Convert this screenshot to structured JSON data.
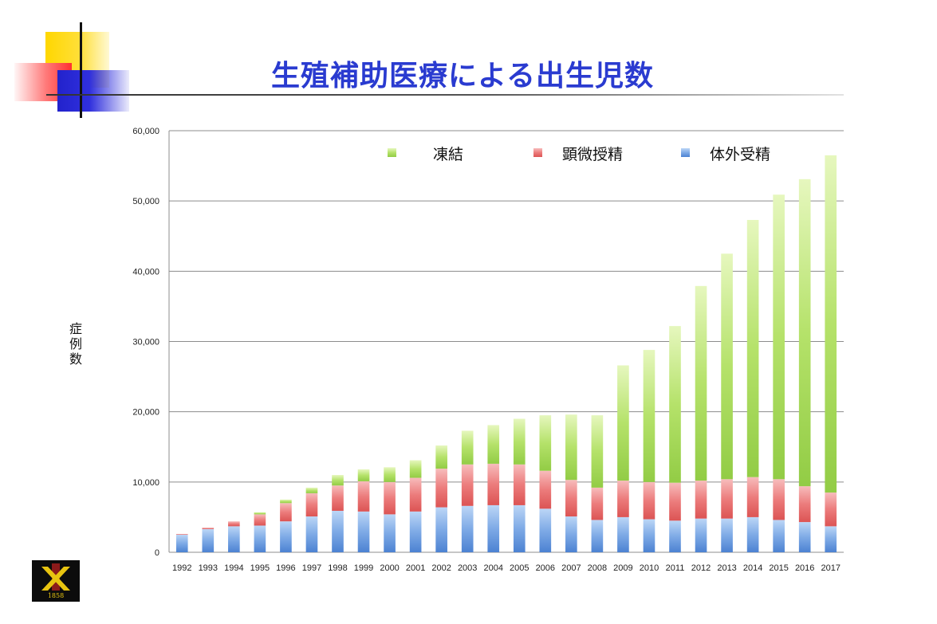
{
  "slide": {
    "title": "生殖補助医療による出生児数",
    "ylabel_chars": [
      "症",
      "例",
      "数"
    ],
    "logo_year": "1858"
  },
  "colors": {
    "title": "#2a3bd0",
    "frozen": "#a6d85a",
    "icsi": "#e46a6a",
    "ivf": "#5b92dc"
  },
  "chart_data": {
    "type": "bar",
    "stacked": true,
    "title": "",
    "xlabel": "",
    "ylabel": "症例数",
    "ylim": [
      0,
      60000
    ],
    "yticks": [
      0,
      10000,
      20000,
      30000,
      40000,
      50000,
      60000
    ],
    "ytick_labels": [
      "0",
      "10,000",
      "20,000",
      "30,000",
      "40,000",
      "50,000",
      "60,000"
    ],
    "grid": true,
    "legend_position": "top-right",
    "categories": [
      "1992",
      "1993",
      "1994",
      "1995",
      "1996",
      "1997",
      "1998",
      "1999",
      "2000",
      "2001",
      "2002",
      "2003",
      "2004",
      "2005",
      "2006",
      "2007",
      "2008",
      "2009",
      "2010",
      "2011",
      "2012",
      "2013",
      "2014",
      "2015",
      "2016",
      "2017"
    ],
    "series": [
      {
        "name": "体外受精",
        "color_key": "ivf",
        "values": [
          2500,
          3300,
          3700,
          3800,
          4400,
          5100,
          5900,
          5800,
          5400,
          5800,
          6400,
          6600,
          6700,
          6700,
          6200,
          5100,
          4600,
          5000,
          4700,
          4500,
          4800,
          4800,
          5000,
          4600,
          4300,
          3700
        ]
      },
      {
        "name": "顕微授精",
        "color_key": "icsi",
        "values": [
          100,
          200,
          700,
          1600,
          2600,
          3300,
          3600,
          4300,
          4600,
          4800,
          5500,
          5900,
          5900,
          5800,
          5400,
          5200,
          4600,
          5200,
          5300,
          5400,
          5400,
          5600,
          5700,
          5800,
          5100,
          4800
        ]
      },
      {
        "name": "凍結",
        "color_key": "frozen",
        "values": [
          0,
          0,
          0,
          300,
          500,
          800,
          1500,
          1700,
          2100,
          2500,
          3300,
          4800,
          5500,
          6500,
          7900,
          9300,
          10300,
          16400,
          18800,
          22300,
          27700,
          32100,
          36600,
          40500,
          43700,
          48000
        ]
      }
    ],
    "legend_order": [
      "凍結",
      "顕微授精",
      "体外受精"
    ]
  }
}
